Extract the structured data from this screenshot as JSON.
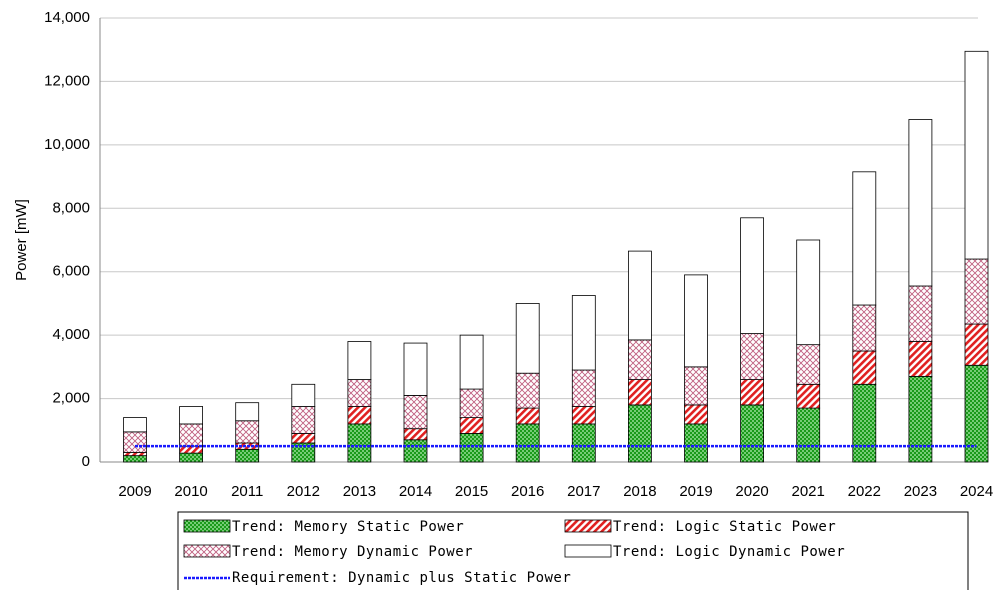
{
  "chart_data": {
    "type": "bar",
    "stacked": true,
    "y_label": "Power [mW]",
    "categories": [
      "2009",
      "2010",
      "2011",
      "2012",
      "2013",
      "2014",
      "2015",
      "2016",
      "2017",
      "2018",
      "2019",
      "2020",
      "2021",
      "2022",
      "2023",
      "2024"
    ],
    "series": [
      {
        "name": "Trend: Memory Static Power",
        "mark": "bar",
        "color": "#1a9a1a",
        "pattern": "dots",
        "values": [
          200,
          280,
          400,
          600,
          1200,
          700,
          900,
          1200,
          1200,
          1800,
          1200,
          1800,
          1700,
          2450,
          2700,
          3050
        ]
      },
      {
        "name": "Trend: Logic Static Power",
        "mark": "bar",
        "color": "#e02020",
        "pattern": "hatch",
        "values": [
          100,
          220,
          200,
          300,
          550,
          350,
          500,
          500,
          550,
          800,
          600,
          800,
          750,
          1050,
          1100,
          1300
        ]
      },
      {
        "name": "Trend: Memory Dynamic Power",
        "mark": "bar",
        "color": "#c06080",
        "pattern": "cross",
        "values": [
          650,
          700,
          700,
          850,
          850,
          1050,
          900,
          1100,
          1150,
          1250,
          1200,
          1450,
          1250,
          1450,
          1750,
          2050
        ]
      },
      {
        "name": "Trend: Logic Dynamic Power",
        "mark": "bar",
        "color": "#ffffff",
        "pattern": "none",
        "values": [
          450,
          550,
          570,
          700,
          1200,
          1650,
          1700,
          2200,
          2350,
          2800,
          2900,
          3650,
          3300,
          4200,
          5250,
          6550
        ]
      },
      {
        "name": "Requirement: Dynamic plus Static Power",
        "mark": "line",
        "color": "#1a1aff",
        "values": [
          500,
          500,
          500,
          500,
          500,
          500,
          500,
          500,
          500,
          500,
          500,
          500,
          500,
          500,
          500,
          500
        ]
      }
    ],
    "ylim": [
      0,
      14000
    ],
    "yticks": [
      0,
      {
        "value": 2000,
        "label": "2,000"
      },
      {
        "value": 4000,
        "label": "4,000"
      },
      {
        "value": 6000,
        "label": "6,000"
      },
      {
        "value": 8000,
        "label": "8,000"
      },
      {
        "value": 10000,
        "label": "10,000"
      },
      {
        "value": 12000,
        "label": "12,000"
      },
      {
        "value": 14000,
        "label": "14,000"
      }
    ],
    "grid": true
  }
}
